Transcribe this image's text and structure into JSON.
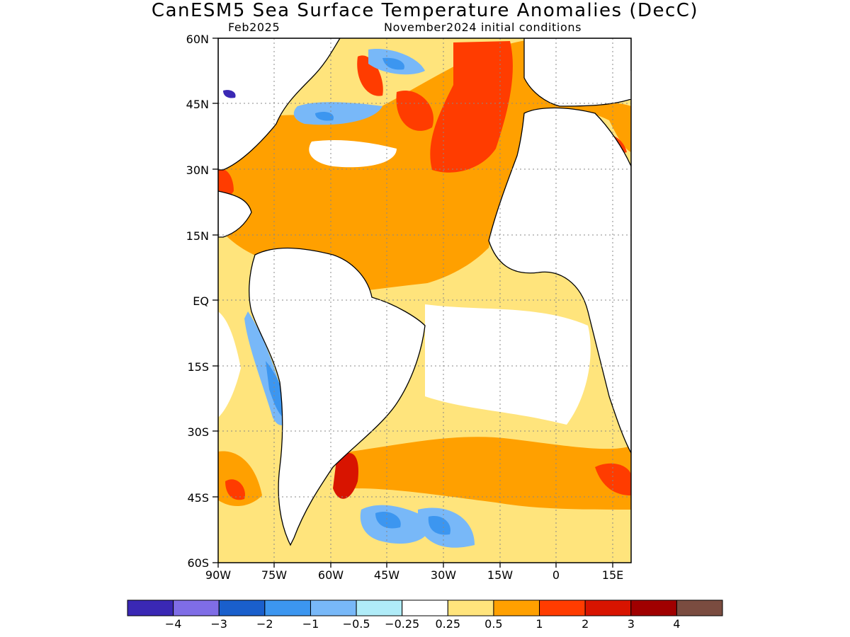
{
  "title": "CanESM5 Sea Surface Temperature Anomalies (DecC)",
  "subtitle_left": "Feb2025",
  "subtitle_right": "November2024 initial conditions",
  "map": {
    "lon_range": [
      -90,
      20
    ],
    "lat_range": [
      -60,
      60
    ],
    "lat_ticks": [
      "60N",
      "45N",
      "30N",
      "15N",
      "EQ",
      "15S",
      "30S",
      "45S",
      "60S"
    ],
    "lon_ticks": [
      "90W",
      "75W",
      "60W",
      "45W",
      "30W",
      "15W",
      "0",
      "15E"
    ],
    "grid": "dotted"
  },
  "colorbar": {
    "colors": [
      "#3a28b4",
      "#7f6de6",
      "#1a5fcc",
      "#3c96f0",
      "#78b8f8",
      "#b0ecf8",
      "#ffffff",
      "#ffe47c",
      "#ffa000",
      "#ff3c00",
      "#d81400",
      "#a00000",
      "#7a4c40"
    ],
    "labels": [
      "−4",
      "−3",
      "−2",
      "−1",
      "−0.5",
      "−0.25",
      "0.25",
      "0.5",
      "1",
      "2",
      "3",
      "4"
    ]
  }
}
